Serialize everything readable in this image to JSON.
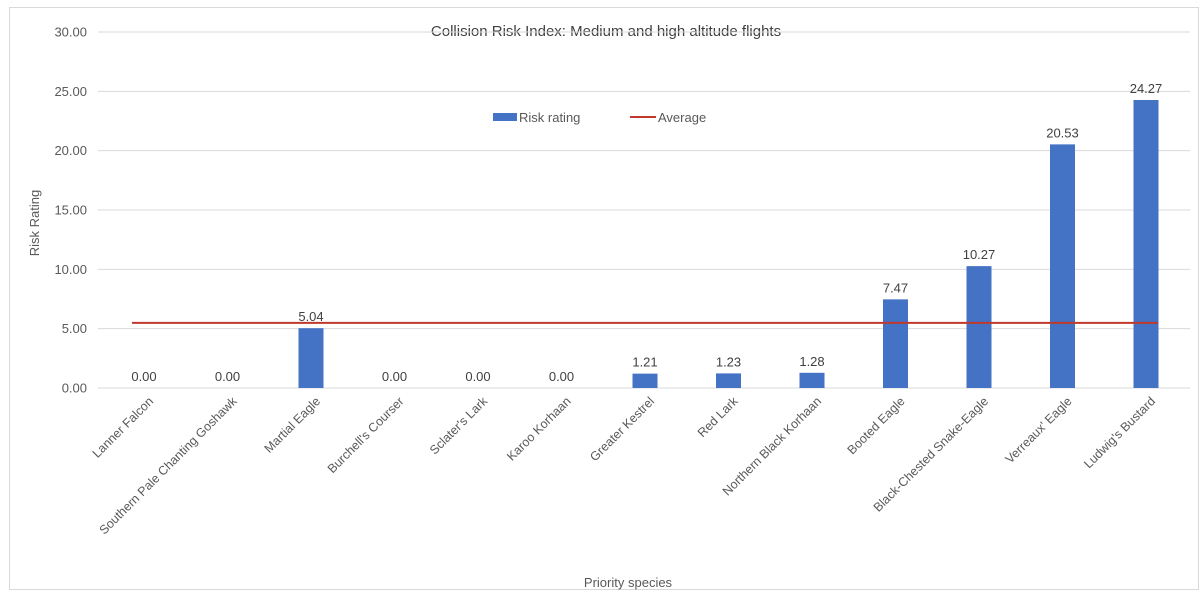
{
  "chart_data": {
    "type": "bar",
    "title": "Collision Risk Index: Medium and high altitude flights",
    "xlabel": "Priority species",
    "ylabel": "Risk Rating",
    "ylim": [
      0,
      30
    ],
    "yticks": [
      "0.00",
      "5.00",
      "10.00",
      "15.00",
      "20.00",
      "25.00",
      "30.00"
    ],
    "grid": true,
    "legend_position": "top-center",
    "categories": [
      "Lanner Falcon",
      "Southern Pale Chanting Goshawk",
      "Martial Eagle",
      "Burchell's Courser",
      "Sclater's Lark",
      "Karoo Korhaan",
      "Greater Kestrel",
      "Red Lark",
      "Northern Black Korhaan",
      "Booted Eagle",
      "Black-Chested Snake-Eagle",
      "Verreaux' Eagle",
      "Ludwig's Bustard"
    ],
    "series": [
      {
        "name": "Risk rating",
        "type": "bar",
        "color": "#4472c4",
        "values": [
          0.0,
          0.0,
          5.04,
          0.0,
          0.0,
          0.0,
          1.21,
          1.23,
          1.28,
          7.47,
          10.27,
          20.53,
          24.27
        ],
        "data_labels": [
          "0.00",
          "0.00",
          "5.04",
          "0.00",
          "0.00",
          "0.00",
          "1.21",
          "1.23",
          "1.28",
          "7.47",
          "10.27",
          "20.53",
          "24.27"
        ]
      },
      {
        "name": "Average",
        "type": "line",
        "color": "#c0392b",
        "value": 5.49
      }
    ]
  }
}
